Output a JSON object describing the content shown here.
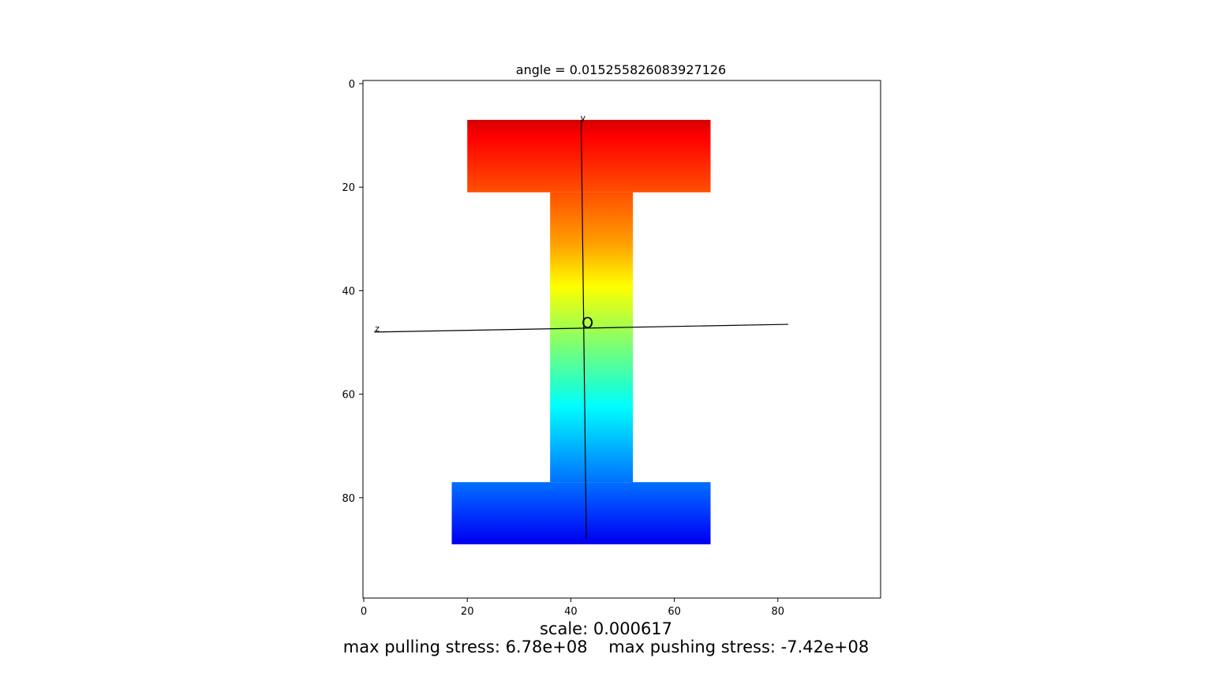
{
  "chart_data": {
    "type": "heatmap",
    "title": "angle = 0.015255826083927126",
    "xlabel": "",
    "ylabel": "",
    "xlim": [
      0,
      100
    ],
    "ylim": [
      100,
      0
    ],
    "x_ticks": [
      0,
      20,
      40,
      60,
      80
    ],
    "y_ticks": [
      0,
      20,
      40,
      60,
      80
    ],
    "grid": false,
    "colormap": "jet",
    "shape": {
      "name": "I-beam cross section",
      "top_flange": {
        "x": [
          20,
          67
        ],
        "y": [
          7,
          21
        ]
      },
      "web": {
        "x": [
          36,
          52
        ],
        "y": [
          21,
          77
        ]
      },
      "bottom_flange": {
        "x": [
          17,
          67
        ],
        "y": [
          77,
          89
        ]
      },
      "color_range_y": [
        7,
        89
      ]
    },
    "axes_lines": [
      {
        "label": "y",
        "from": [
          42,
          7
        ],
        "to": [
          43,
          88
        ]
      },
      {
        "label": "z",
        "from": [
          2,
          48
        ],
        "to": [
          82,
          46.5
        ]
      }
    ],
    "origin_label": {
      "text": "O",
      "at": [
        43,
        47
      ]
    },
    "annotations": {
      "scale": "scale: 0.000617",
      "stress": "max pulling stress: 6.78e+08    max pushing stress: -7.42e+08"
    }
  }
}
